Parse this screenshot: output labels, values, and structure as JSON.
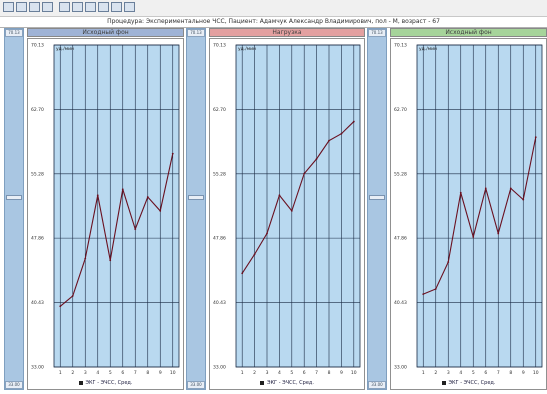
{
  "window": {
    "title": "Процедура: Экспериментальное ЧСС, Пациент: Адамчук Александр Владимирович, пол - М, возраст - 67"
  },
  "toolbar": {
    "icons": [
      "save-icon",
      "print-icon",
      "table-icon",
      "chart-icon",
      "zoom-icon",
      "grid-icon",
      "copy-icon",
      "paste-icon",
      "export-icon",
      "settings-icon"
    ]
  },
  "colors": {
    "plot_bg": "#b9d9f0",
    "grid": "#1a2a44",
    "series": "#6a1020",
    "head_1": "#9fb3d6",
    "head_2": "#e3a0a0",
    "head_3": "#a6d49a"
  },
  "panels": [
    {
      "header": "Исходный фон",
      "slider_top": "70.13",
      "slider_bottom": "33.00",
      "unit": "уд./мин"
    },
    {
      "header": "Нагрузка",
      "slider_top": "70.13",
      "slider_bottom": "33.00",
      "unit": "уд./мин"
    },
    {
      "header": "Исходный фон",
      "slider_top": "70.13",
      "slider_bottom": "33.00",
      "unit": "уд./мин"
    }
  ],
  "chart_data": [
    {
      "type": "line",
      "title": "Исходный фон",
      "ylabel": "уд./мин",
      "x": [
        1,
        2,
        3,
        4,
        5,
        6,
        7,
        8,
        9,
        10
      ],
      "yticks": [
        33.0,
        40.43,
        47.86,
        55.28,
        62.7,
        70.13
      ],
      "ylim": [
        33.0,
        70.13
      ],
      "grid": true,
      "series": [
        {
          "name": "ЭКГ - ЭЧСС, Сред.",
          "values": [
            40.0,
            41.2,
            45.5,
            52.8,
            45.3,
            53.5,
            48.9,
            52.6,
            51.0,
            57.6
          ]
        }
      ]
    },
    {
      "type": "line",
      "title": "Нагрузка",
      "ylabel": "уд./мин",
      "x": [
        1,
        2,
        3,
        4,
        5,
        6,
        7,
        8,
        9,
        10
      ],
      "yticks": [
        33.0,
        40.43,
        47.86,
        55.28,
        62.7,
        70.13
      ],
      "ylim": [
        33.0,
        70.13
      ],
      "grid": true,
      "series": [
        {
          "name": "ЭКГ - ЭЧСС, Сред.",
          "values": [
            43.8,
            46.0,
            48.4,
            52.8,
            51.0,
            55.3,
            57.0,
            59.1,
            59.9,
            61.3
          ]
        }
      ]
    },
    {
      "type": "line",
      "title": "Исходный фон",
      "ylabel": "уд./мин",
      "x": [
        1,
        2,
        3,
        4,
        5,
        6,
        7,
        8,
        9,
        10
      ],
      "yticks": [
        33.0,
        40.43,
        47.86,
        55.28,
        62.7,
        70.13
      ],
      "ylim": [
        33.0,
        70.13
      ],
      "grid": true,
      "series": [
        {
          "name": "ЭКГ - ЭЧСС, Сред.",
          "values": [
            41.4,
            42.0,
            45.1,
            53.1,
            48.0,
            53.6,
            48.4,
            53.6,
            52.3,
            59.5
          ]
        }
      ]
    }
  ]
}
